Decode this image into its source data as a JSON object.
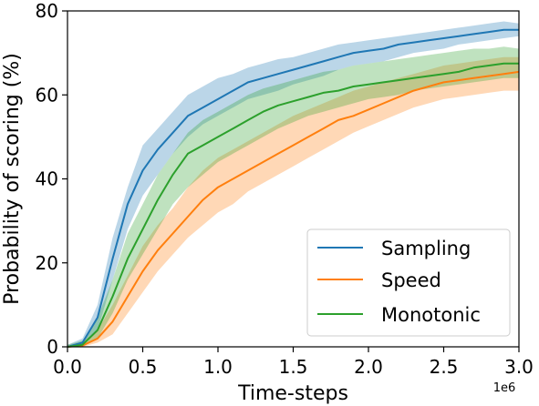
{
  "chart_data": {
    "type": "line",
    "xlabel": "Time-steps",
    "ylabel": "Probability of scoring (%)",
    "x_offset_label": "1e6",
    "xlim": [
      0.0,
      3.0
    ],
    "ylim": [
      0,
      80
    ],
    "xticks": [
      0.0,
      0.5,
      1.0,
      1.5,
      2.0,
      2.5,
      3.0
    ],
    "xtick_labels": [
      "0.0",
      "0.5",
      "1.0",
      "1.5",
      "2.0",
      "2.5",
      "3.0"
    ],
    "yticks": [
      0,
      20,
      40,
      60,
      80
    ],
    "ytick_labels": [
      "0",
      "20",
      "40",
      "60",
      "80"
    ],
    "grid": false,
    "legend_position": "lower-right",
    "x": [
      0.0,
      0.1,
      0.2,
      0.3,
      0.4,
      0.5,
      0.6,
      0.7,
      0.8,
      0.9,
      1.0,
      1.1,
      1.2,
      1.3,
      1.4,
      1.5,
      1.6,
      1.7,
      1.8,
      1.9,
      2.0,
      2.1,
      2.2,
      2.3,
      2.4,
      2.5,
      2.6,
      2.7,
      2.8,
      2.9,
      3.0
    ],
    "series": [
      {
        "name": "Sampling",
        "color": "#1f77b4",
        "values": [
          0,
          1,
          7,
          21,
          34,
          42,
          47,
          51,
          55,
          57,
          59,
          61,
          63,
          64,
          65,
          66,
          67,
          68,
          69,
          70,
          70.5,
          71,
          72,
          72.5,
          73,
          73.5,
          74,
          74.5,
          75,
          75.5,
          75.5
        ],
        "lower": [
          0,
          0.5,
          4,
          16,
          28,
          36,
          41,
          46,
          50,
          53,
          55,
          57,
          59,
          60,
          61,
          62.5,
          63.5,
          64.5,
          66,
          67,
          67.5,
          68,
          69,
          70,
          70.5,
          71,
          72,
          72.5,
          73,
          73.5,
          74
        ],
        "upper": [
          0.5,
          2,
          10,
          26,
          38,
          48,
          52,
          56,
          60,
          62,
          64,
          65,
          66.5,
          67.5,
          68.5,
          69,
          70,
          71,
          72,
          72.5,
          73,
          73.5,
          74,
          74.5,
          75,
          75.5,
          76,
          76.5,
          77,
          77.5,
          77
        ]
      },
      {
        "name": "Speed",
        "color": "#ff7f0e",
        "values": [
          0,
          0.3,
          2,
          6,
          12,
          18,
          23,
          27,
          31,
          35,
          38,
          40,
          42,
          44,
          46,
          48,
          50,
          52,
          54,
          55,
          56.5,
          58,
          59.5,
          61,
          62,
          63,
          63.5,
          64,
          64.5,
          65,
          65.5
        ],
        "lower": [
          0,
          0,
          1,
          3,
          8,
          13,
          18,
          22,
          26,
          29,
          32,
          34,
          37,
          39,
          41,
          43,
          45,
          47,
          49,
          51,
          52.5,
          54,
          55.5,
          57,
          58,
          59,
          59.5,
          60,
          60.5,
          61,
          61
        ],
        "upper": [
          0.3,
          1,
          4,
          10,
          17,
          24,
          29,
          33,
          38,
          42,
          45,
          47,
          49,
          51,
          53,
          55,
          56.5,
          58,
          59.5,
          61,
          62,
          63,
          64,
          65,
          66,
          67,
          67.5,
          68,
          68.5,
          69,
          69
        ]
      },
      {
        "name": "Monotonic",
        "color": "#2ca02c",
        "values": [
          0,
          0.5,
          4,
          12,
          21,
          28,
          35,
          41,
          46,
          48,
          50,
          52,
          54,
          56,
          57.5,
          58.5,
          59.5,
          60.5,
          61,
          62,
          62.5,
          63,
          63.5,
          64,
          64.5,
          65,
          65.5,
          66.5,
          67,
          67.5,
          67.5
        ],
        "lower": [
          0,
          0.2,
          2,
          8,
          16,
          22,
          28,
          34,
          38,
          41,
          44,
          46,
          48,
          50,
          52,
          53.5,
          55,
          56,
          57,
          58,
          59,
          59.5,
          60,
          61,
          61.5,
          62,
          62.5,
          63,
          63.5,
          64,
          64
        ],
        "upper": [
          0.5,
          1.5,
          7,
          16,
          27,
          34,
          41,
          46,
          51,
          54,
          56,
          58,
          60,
          61.5,
          62.5,
          63.5,
          64.5,
          65.5,
          66,
          67,
          67.5,
          68,
          68.5,
          69,
          69.5,
          70,
          70.5,
          71,
          71,
          71.5,
          71
        ]
      }
    ]
  }
}
